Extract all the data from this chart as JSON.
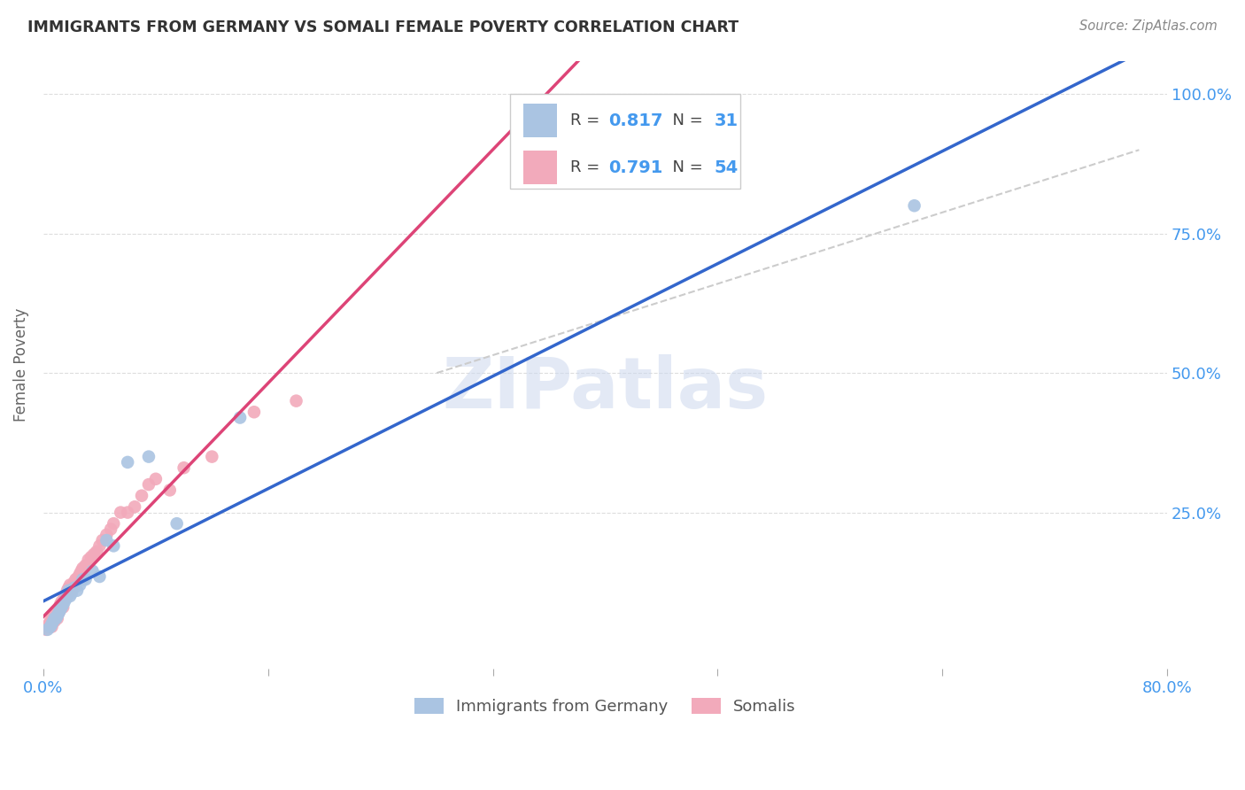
{
  "title": "IMMIGRANTS FROM GERMANY VS SOMALI FEMALE POVERTY CORRELATION CHART",
  "source": "Source: ZipAtlas.com",
  "ylabel": "Female Poverty",
  "ytick_vals": [
    0.25,
    0.5,
    0.75,
    1.0
  ],
  "ytick_labels": [
    "25.0%",
    "50.0%",
    "75.0%",
    "100.0%"
  ],
  "xtick_vals": [
    0.0,
    0.16,
    0.32,
    0.48,
    0.64,
    0.8
  ],
  "xtick_labels": [
    "0.0%",
    "",
    "",
    "",
    "",
    "80.0%"
  ],
  "xlim": [
    0.0,
    0.8
  ],
  "ylim": [
    -0.03,
    1.06
  ],
  "blue_R": "0.817",
  "blue_N": "31",
  "pink_R": "0.791",
  "pink_N": "54",
  "blue_color": "#aac4e2",
  "pink_color": "#f2aabb",
  "blue_line_color": "#3366cc",
  "pink_line_color": "#dd4477",
  "dashed_color": "#cccccc",
  "watermark_text": "ZIPatlas",
  "watermark_color": "#ccd8ee",
  "legend_label_blue": "Immigrants from Germany",
  "legend_label_pink": "Somalis",
  "background_color": "#ffffff",
  "grid_color": "#dddddd",
  "blue_scatter_x": [
    0.003,
    0.005,
    0.006,
    0.007,
    0.008,
    0.009,
    0.01,
    0.011,
    0.012,
    0.013,
    0.014,
    0.015,
    0.016,
    0.017,
    0.018,
    0.019,
    0.02,
    0.022,
    0.024,
    0.026,
    0.028,
    0.03,
    0.035,
    0.04,
    0.045,
    0.05,
    0.06,
    0.075,
    0.095,
    0.14,
    0.62
  ],
  "blue_scatter_y": [
    0.04,
    0.045,
    0.05,
    0.055,
    0.06,
    0.06,
    0.065,
    0.07,
    0.075,
    0.08,
    0.085,
    0.09,
    0.095,
    0.1,
    0.11,
    0.1,
    0.105,
    0.115,
    0.11,
    0.12,
    0.13,
    0.13,
    0.145,
    0.135,
    0.2,
    0.19,
    0.34,
    0.35,
    0.23,
    0.42,
    0.8
  ],
  "pink_scatter_x": [
    0.002,
    0.003,
    0.004,
    0.005,
    0.006,
    0.006,
    0.007,
    0.008,
    0.008,
    0.009,
    0.01,
    0.01,
    0.011,
    0.012,
    0.012,
    0.013,
    0.014,
    0.015,
    0.015,
    0.016,
    0.017,
    0.018,
    0.018,
    0.019,
    0.02,
    0.021,
    0.022,
    0.023,
    0.024,
    0.025,
    0.026,
    0.027,
    0.028,
    0.03,
    0.032,
    0.034,
    0.036,
    0.038,
    0.04,
    0.042,
    0.045,
    0.048,
    0.05,
    0.055,
    0.06,
    0.065,
    0.07,
    0.075,
    0.08,
    0.09,
    0.1,
    0.12,
    0.15,
    0.18
  ],
  "pink_scatter_y": [
    0.04,
    0.045,
    0.05,
    0.055,
    0.045,
    0.065,
    0.06,
    0.055,
    0.07,
    0.065,
    0.06,
    0.075,
    0.07,
    0.08,
    0.085,
    0.09,
    0.08,
    0.095,
    0.1,
    0.1,
    0.11,
    0.105,
    0.115,
    0.12,
    0.11,
    0.12,
    0.125,
    0.13,
    0.13,
    0.135,
    0.14,
    0.145,
    0.15,
    0.155,
    0.165,
    0.17,
    0.175,
    0.18,
    0.19,
    0.2,
    0.21,
    0.22,
    0.23,
    0.25,
    0.25,
    0.26,
    0.28,
    0.3,
    0.31,
    0.29,
    0.33,
    0.35,
    0.43,
    0.45
  ],
  "blue_line_x": [
    0.0,
    0.8
  ],
  "pink_line_x": [
    0.0,
    0.6
  ],
  "dash_line_pts": [
    [
      0.28,
      0.5
    ],
    [
      0.78,
      0.9
    ]
  ]
}
